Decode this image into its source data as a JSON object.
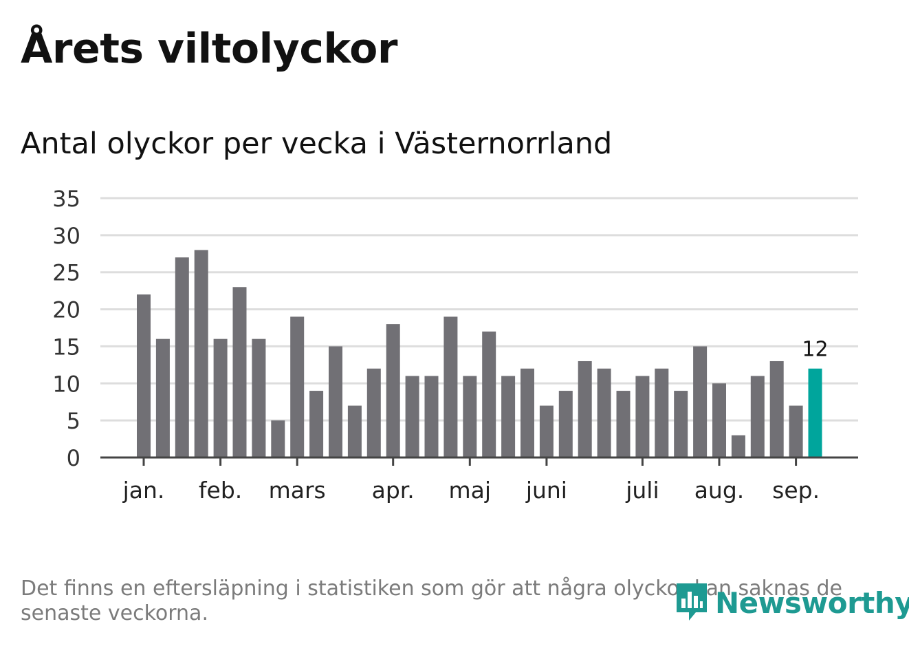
{
  "title": "Årets viltolyckor",
  "subtitle": "Antal olyckor per vecka i Västernorrland",
  "footnote": "Det finns en eftersläpning i statistiken som gör att några olyckor kan saknas de senaste veckorna.",
  "logo_text": "Newsworthy",
  "colors": {
    "bar": "#717075",
    "highlight": "#00a59c",
    "grid": "#dddddd",
    "axis": "#444444",
    "logo": "#1e9a92"
  },
  "chart_data": {
    "type": "bar",
    "title": "",
    "ylim": [
      0,
      35
    ],
    "yticks": [
      0,
      5,
      10,
      15,
      20,
      25,
      30,
      35
    ],
    "grid": true,
    "values": [
      22,
      16,
      27,
      28,
      16,
      23,
      16,
      5,
      19,
      9,
      15,
      7,
      12,
      18,
      11,
      11,
      19,
      11,
      17,
      11,
      12,
      7,
      9,
      13,
      12,
      9,
      11,
      12,
      9,
      15,
      10,
      3,
      11,
      13,
      7,
      12
    ],
    "highlight_index": 35,
    "highlight_label": "12",
    "month_labels": [
      {
        "label": "jan.",
        "week": 0
      },
      {
        "label": "feb.",
        "week": 4
      },
      {
        "label": "mars",
        "week": 8
      },
      {
        "label": "apr.",
        "week": 13
      },
      {
        "label": "maj",
        "week": 17
      },
      {
        "label": "juni",
        "week": 21
      },
      {
        "label": "juli",
        "week": 26
      },
      {
        "label": "aug.",
        "week": 30
      },
      {
        "label": "sep.",
        "week": 34
      }
    ]
  }
}
